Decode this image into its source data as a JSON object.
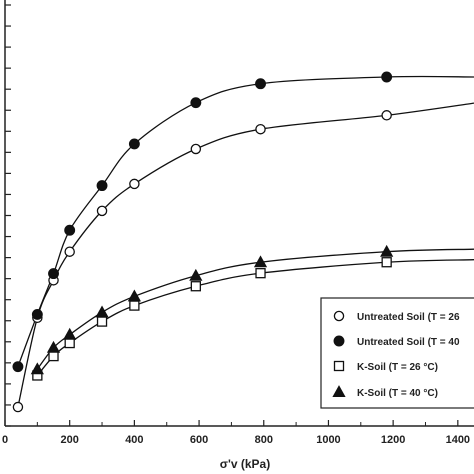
{
  "chart_data": {
    "type": "scatter",
    "xlabel": "σ'v (kPa)",
    "ylabel": "",
    "xlim": [
      0,
      1450
    ],
    "ylim": [
      0,
      1
    ],
    "x_ticks": [
      "0",
      "200",
      "400",
      "600",
      "800",
      "1000",
      "1200",
      "1400"
    ],
    "grid": false,
    "legend_position": "bottom-right",
    "series": [
      {
        "name": "Untreated Soil (T = 26",
        "marker": "open-circle",
        "x": [
          40,
          100,
          150,
          200,
          300,
          400,
          590,
          790,
          1180
        ],
        "y": [
          0.045,
          0.257,
          0.346,
          0.414,
          0.511,
          0.575,
          0.658,
          0.705,
          0.738
        ],
        "curve": [
          [
            40,
            0.045
          ],
          [
            100,
            0.257
          ],
          [
            150,
            0.346
          ],
          [
            200,
            0.414
          ],
          [
            300,
            0.511
          ],
          [
            400,
            0.575
          ],
          [
            590,
            0.658
          ],
          [
            790,
            0.705
          ],
          [
            1180,
            0.738
          ],
          [
            1450,
            0.767
          ]
        ]
      },
      {
        "name": "Untreated Soil (T = 40",
        "marker": "filled-circle",
        "x": [
          40,
          100,
          150,
          200,
          300,
          400,
          590,
          790,
          1180
        ],
        "y": [
          0.141,
          0.265,
          0.362,
          0.465,
          0.571,
          0.67,
          0.768,
          0.813,
          0.829
        ],
        "curve": [
          [
            40,
            0.141
          ],
          [
            100,
            0.265
          ],
          [
            150,
            0.362
          ],
          [
            200,
            0.465
          ],
          [
            300,
            0.571
          ],
          [
            400,
            0.67
          ],
          [
            590,
            0.768
          ],
          [
            790,
            0.813
          ],
          [
            1180,
            0.829
          ],
          [
            1450,
            0.829
          ]
        ]
      },
      {
        "name": "K-Soil (T = 26 °C)",
        "marker": "open-square",
        "x": [
          100,
          150,
          200,
          300,
          400,
          590,
          790,
          1180
        ],
        "y": [
          0.12,
          0.166,
          0.197,
          0.248,
          0.286,
          0.332,
          0.363,
          0.389
        ],
        "curve": [
          [
            100,
            0.12
          ],
          [
            150,
            0.166
          ],
          [
            200,
            0.197
          ],
          [
            300,
            0.248
          ],
          [
            400,
            0.286
          ],
          [
            590,
            0.332
          ],
          [
            790,
            0.363
          ],
          [
            1180,
            0.389
          ],
          [
            1450,
            0.395
          ]
        ]
      },
      {
        "name": "K-Soil (T = 40 °C)",
        "marker": "filled-triangle",
        "x": [
          100,
          150,
          200,
          300,
          400,
          590,
          790,
          1180
        ],
        "y": [
          0.135,
          0.186,
          0.217,
          0.27,
          0.308,
          0.357,
          0.389,
          0.414
        ],
        "curve": [
          [
            100,
            0.135
          ],
          [
            150,
            0.186
          ],
          [
            200,
            0.217
          ],
          [
            300,
            0.27
          ],
          [
            400,
            0.308
          ],
          [
            590,
            0.357
          ],
          [
            790,
            0.389
          ],
          [
            1180,
            0.414
          ],
          [
            1450,
            0.42
          ]
        ]
      }
    ]
  }
}
